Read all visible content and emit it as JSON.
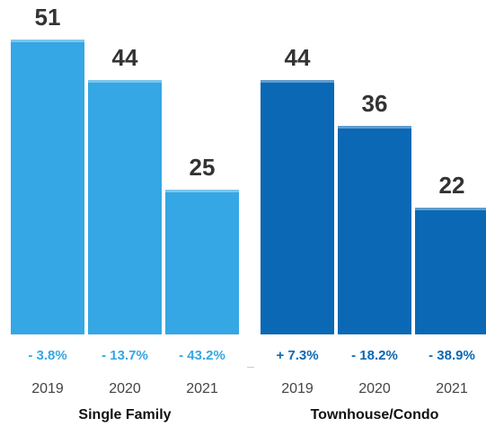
{
  "chart_data": {
    "type": "bar",
    "title": "",
    "ylim": [
      0,
      51
    ],
    "grid": false,
    "legend": "none",
    "groups": [
      {
        "name": "Single Family",
        "color": "#35A7E4",
        "change_color": "#35A7E4",
        "categories": [
          "2019",
          "2020",
          "2021"
        ],
        "values": [
          51,
          44,
          25
        ],
        "changes": [
          "- 3.8%",
          "- 13.7%",
          "- 43.2%"
        ]
      },
      {
        "name": "Townhouse/Condo",
        "color": "#0B68B4",
        "change_color": "#0B68B4",
        "categories": [
          "2019",
          "2020",
          "2021"
        ],
        "values": [
          44,
          36,
          22
        ],
        "changes": [
          "+ 7.3%",
          "- 18.2%",
          "- 38.9%"
        ]
      }
    ]
  }
}
